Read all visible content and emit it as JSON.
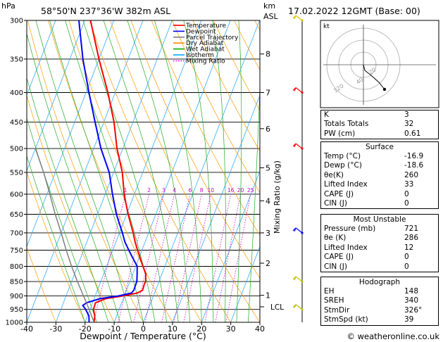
{
  "header": {
    "location": "58°50'N  237°36'W  382m  ASL",
    "datetime": "17.02.2022  12GMT  (Base: 00)",
    "hpa_label": "hPa",
    "km_label": "km",
    "asl_label": "ASL",
    "mixing_ratio_label": "Mixing Ratio (g/kg)",
    "lcl_label": "LCL",
    "watermark": "© weatheronline.co.uk"
  },
  "legend": [
    {
      "label": "Temperature",
      "color": "#ff0000"
    },
    {
      "label": "Dewpoint",
      "color": "#0000ff"
    },
    {
      "label": "Parcel Trajectory",
      "color": "#808080"
    },
    {
      "label": "Dry Adiabat",
      "color": "#ff8c00"
    },
    {
      "label": "Wet Adiabat",
      "color": "#00aa00"
    },
    {
      "label": "Isotherm",
      "color": "#00aaff"
    },
    {
      "label": "Mixing Ratio",
      "color": "#ff00ff"
    }
  ],
  "chart_data": {
    "type": "line",
    "xlabel": "Dewpoint / Temperature (°C)",
    "ylabel": "hPa",
    "xlim": [
      -40,
      40
    ],
    "ylim": [
      1000,
      300
    ],
    "y_scale": "log",
    "x_ticks": [
      "-40",
      "-30",
      "-20",
      "-10",
      "0",
      "10",
      "20",
      "30",
      "40"
    ],
    "pressure_levels": [
      "300",
      "350",
      "400",
      "450",
      "500",
      "550",
      "600",
      "650",
      "700",
      "750",
      "800",
      "850",
      "900",
      "950",
      "1000"
    ],
    "km_ticks": [
      {
        "label": "1",
        "p": 898
      },
      {
        "label": "2",
        "p": 790
      },
      {
        "label": "3",
        "p": 700
      },
      {
        "label": "4",
        "p": 616
      },
      {
        "label": "5",
        "p": 540
      },
      {
        "label": "6",
        "p": 462
      },
      {
        "label": "7",
        "p": 400
      },
      {
        "label": "8",
        "p": 343
      }
    ],
    "lcl_p": 940,
    "mixing_ratio_labels": [
      "1",
      "2",
      "3",
      "4",
      "6",
      "8",
      "10",
      "16",
      "20",
      "25"
    ],
    "series": [
      {
        "name": "Temperature",
        "color": "#ff0000",
        "points": [
          [
            1000,
            -16.9
          ],
          [
            975,
            -17.5
          ],
          [
            950,
            -18.8
          ],
          [
            925,
            -19.0
          ],
          [
            910,
            -16.0
          ],
          [
            900,
            -10.5
          ],
          [
            890,
            -6.0
          ],
          [
            880,
            -4.5
          ],
          [
            860,
            -4.7
          ],
          [
            850,
            -4.6
          ],
          [
            825,
            -5.5
          ],
          [
            800,
            -7.5
          ],
          [
            775,
            -9.5
          ],
          [
            750,
            -11.5
          ],
          [
            725,
            -13.5
          ],
          [
            700,
            -15.3
          ],
          [
            650,
            -19.5
          ],
          [
            600,
            -23.5
          ],
          [
            550,
            -27.0
          ],
          [
            500,
            -32.0
          ],
          [
            450,
            -36.5
          ],
          [
            400,
            -42.5
          ],
          [
            350,
            -50.0
          ],
          [
            300,
            -58.0
          ]
        ]
      },
      {
        "name": "Dewpoint",
        "color": "#0000ff",
        "points": [
          [
            1000,
            -18.6
          ],
          [
            975,
            -19.5
          ],
          [
            950,
            -21.5
          ],
          [
            935,
            -23.0
          ],
          [
            925,
            -22.0
          ],
          [
            910,
            -18.0
          ],
          [
            900,
            -12.0
          ],
          [
            890,
            -8.0
          ],
          [
            880,
            -7.5
          ],
          [
            860,
            -7.6
          ],
          [
            850,
            -7.6
          ],
          [
            825,
            -8.5
          ],
          [
            800,
            -9.5
          ],
          [
            775,
            -12.0
          ],
          [
            750,
            -14.5
          ],
          [
            725,
            -17.0
          ],
          [
            700,
            -19.0
          ],
          [
            650,
            -23.5
          ],
          [
            600,
            -27.5
          ],
          [
            550,
            -31.5
          ],
          [
            500,
            -37.5
          ],
          [
            450,
            -43.0
          ],
          [
            400,
            -49.0
          ],
          [
            350,
            -55.5
          ],
          [
            300,
            -62.0
          ]
        ]
      },
      {
        "name": "Parcel Trajectory",
        "color": "#808080",
        "points": [
          [
            1000,
            -16.9
          ],
          [
            940,
            -21.0
          ],
          [
            900,
            -24.0
          ],
          [
            850,
            -28.0
          ],
          [
            800,
            -32.0
          ],
          [
            750,
            -36.0
          ],
          [
            700,
            -40.0
          ],
          [
            650,
            -44.5
          ],
          [
            600,
            -49.0
          ],
          [
            550,
            -54.0
          ],
          [
            500,
            -60.0
          ]
        ]
      }
    ]
  },
  "hodograph": {
    "label": "kt",
    "ring_labels": [
      "20",
      "40",
      "120"
    ],
    "points": [
      [
        0,
        0
      ],
      [
        2,
        -8
      ],
      [
        12,
        -16
      ],
      [
        22,
        -25
      ],
      [
        30,
        -35
      ]
    ]
  },
  "indices": [
    {
      "label": "K",
      "value": "3"
    },
    {
      "label": "Totals Totals",
      "value": "32"
    },
    {
      "label": "PW (cm)",
      "value": "0.61"
    }
  ],
  "surface": {
    "title": "Surface",
    "rows": [
      {
        "label": "Temp (°C)",
        "value": "-16.9"
      },
      {
        "label": "Dewp (°C)",
        "value": "-18.6"
      },
      {
        "label": "θe(K)",
        "value": "260"
      },
      {
        "label": "Lifted Index",
        "value": "33"
      },
      {
        "label": "CAPE (J)",
        "value": "0"
      },
      {
        "label": "CIN (J)",
        "value": "0"
      }
    ]
  },
  "most_unstable": {
    "title": "Most Unstable",
    "rows": [
      {
        "label": "Pressure (mb)",
        "value": "721"
      },
      {
        "label": "θe (K)",
        "value": "286"
      },
      {
        "label": "Lifted Index",
        "value": "12"
      },
      {
        "label": "CAPE (J)",
        "value": "0"
      },
      {
        "label": "CIN (J)",
        "value": "0"
      }
    ]
  },
  "hodograph_table": {
    "title": "Hodograph",
    "rows": [
      {
        "label": "EH",
        "value": "148"
      },
      {
        "label": "SREH",
        "value": "340"
      },
      {
        "label": "StmDir",
        "value": "326°"
      },
      {
        "label": "StmSpd (kt)",
        "value": "39"
      }
    ]
  },
  "wind_barbs": [
    {
      "p": 300,
      "color": "#e0c000"
    },
    {
      "p": 400,
      "color": "#ff0000"
    },
    {
      "p": 500,
      "color": "#ff0000"
    },
    {
      "p": 700,
      "color": "#0000ff"
    },
    {
      "p": 850,
      "color": "#c0c000"
    },
    {
      "p": 950,
      "color": "#c0c000"
    }
  ]
}
